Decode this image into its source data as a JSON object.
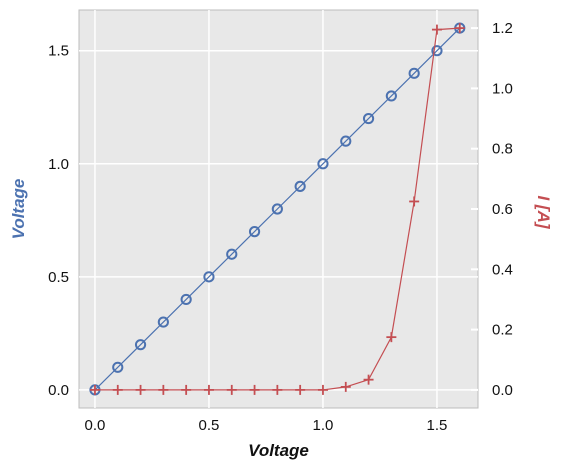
{
  "chart_data": {
    "type": "line",
    "xlabel": "Voltage",
    "ylabel_left": "Voltage",
    "ylabel_right": "I [A]",
    "x": [
      0.0,
      0.1,
      0.2,
      0.3,
      0.4,
      0.5,
      0.6,
      0.7,
      0.8,
      0.9,
      1.0,
      1.1,
      1.2,
      1.3,
      1.4,
      1.5,
      1.6
    ],
    "series": [
      {
        "axis": "left",
        "color": "#4c72b0",
        "marker": "circle",
        "values": [
          0.0,
          0.1,
          0.2,
          0.3,
          0.4,
          0.5,
          0.6,
          0.7,
          0.8,
          0.9,
          1.0,
          1.1,
          1.2,
          1.3,
          1.4,
          1.5,
          1.6
        ]
      },
      {
        "axis": "right",
        "color": "#c44e52",
        "marker": "plus",
        "values": [
          0.0,
          0.0,
          0.0,
          0.0,
          0.0,
          0.0,
          0.0,
          0.0,
          0.0,
          0.0,
          0.0,
          0.01,
          0.034,
          0.175,
          0.625,
          1.195,
          1.2
        ]
      }
    ],
    "xlim": [
      -0.07,
      1.68
    ],
    "ylim_left": [
      -0.08,
      1.68
    ],
    "ylim_right": [
      -0.06,
      1.26
    ],
    "xticks": [
      "0.0",
      "0.5",
      "1.0",
      "1.5"
    ],
    "yticks_left": [
      "0.0",
      "0.5",
      "1.0",
      "1.5"
    ],
    "yticks_right": [
      "0.0",
      "0.2",
      "0.4",
      "0.6",
      "0.8",
      "1.0",
      "1.2"
    ],
    "grid": true,
    "colors": {
      "background": "#e8e8e8",
      "grid": "#ffffff",
      "left_axis_label": "#4c72b0",
      "right_axis_label": "#c44e52"
    }
  }
}
